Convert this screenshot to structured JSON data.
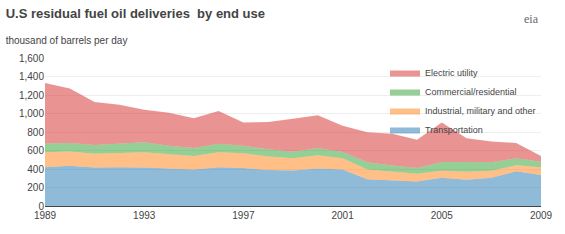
{
  "chart_data": {
    "type": "area",
    "stacked": true,
    "title": "U.S residual fuel oil deliveries  by end use",
    "subtitle": "thousand of barrels per day",
    "annotations": [
      "eia"
    ],
    "x": [
      1989,
      1990,
      1991,
      1992,
      1993,
      1994,
      1995,
      1996,
      1997,
      1998,
      1999,
      2000,
      2001,
      2002,
      2003,
      2004,
      2005,
      2006,
      2007,
      2008,
      2009
    ],
    "series": [
      {
        "name": "Transportation",
        "values": [
          420,
          435,
          415,
          420,
          415,
          405,
          395,
          420,
          410,
          390,
          385,
          405,
          395,
          290,
          275,
          265,
          305,
          285,
          305,
          375,
          335
        ]
      },
      {
        "name": "Industrial, military and other",
        "values": [
          160,
          155,
          150,
          150,
          165,
          155,
          145,
          160,
          160,
          145,
          130,
          145,
          120,
          105,
          95,
          85,
          75,
          85,
          75,
          65,
          85
        ]
      },
      {
        "name": "Commercial/residential",
        "values": [
          95,
          90,
          95,
          105,
          110,
          92,
          88,
          92,
          82,
          78,
          72,
          77,
          68,
          77,
          67,
          62,
          97,
          107,
          92,
          77,
          58
        ]
      },
      {
        "name": "Electric utility",
        "values": [
          655,
          590,
          465,
          420,
          350,
          355,
          320,
          355,
          250,
          295,
          355,
          355,
          285,
          325,
          345,
          305,
          425,
          255,
          225,
          165,
          62
        ]
      }
    ],
    "xlim": [
      1989,
      2009
    ],
    "xticks": [
      1989,
      1993,
      1997,
      2001,
      2005,
      2009
    ],
    "ylim": [
      0,
      1600
    ],
    "yticks": [
      0,
      200,
      400,
      600,
      800,
      {
        "value": 1000,
        "label": "1,000"
      },
      {
        "value": 1200,
        "label": "1,200"
      },
      {
        "value": 1400,
        "label": "1,400"
      },
      {
        "value": 1600,
        "label": "1,600"
      }
    ],
    "grid": "y",
    "legend": "upper right"
  }
}
